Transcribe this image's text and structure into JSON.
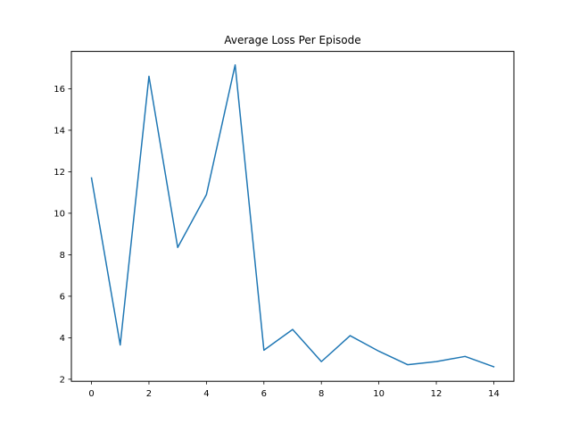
{
  "chart_data": {
    "type": "line",
    "title": "Average Loss Per Episode",
    "xlabel": "",
    "ylabel": "",
    "x": [
      0,
      1,
      2,
      3,
      4,
      5,
      6,
      7,
      8,
      9,
      10,
      11,
      12,
      13,
      14
    ],
    "series": [
      {
        "values": [
          11.7,
          3.65,
          16.6,
          8.35,
          10.9,
          17.15,
          3.4,
          4.4,
          2.85,
          4.1,
          3.35,
          2.7,
          2.85,
          3.1,
          2.6
        ],
        "color": "#1f77b4"
      }
    ],
    "xlim": [
      -0.7,
      14.7
    ],
    "ylim": [
      1.9,
      17.8
    ],
    "xticks": [
      0,
      2,
      4,
      6,
      8,
      10,
      12,
      14
    ],
    "yticks": [
      2,
      4,
      6,
      8,
      10,
      12,
      14,
      16
    ],
    "grid": false,
    "legend": "none"
  }
}
